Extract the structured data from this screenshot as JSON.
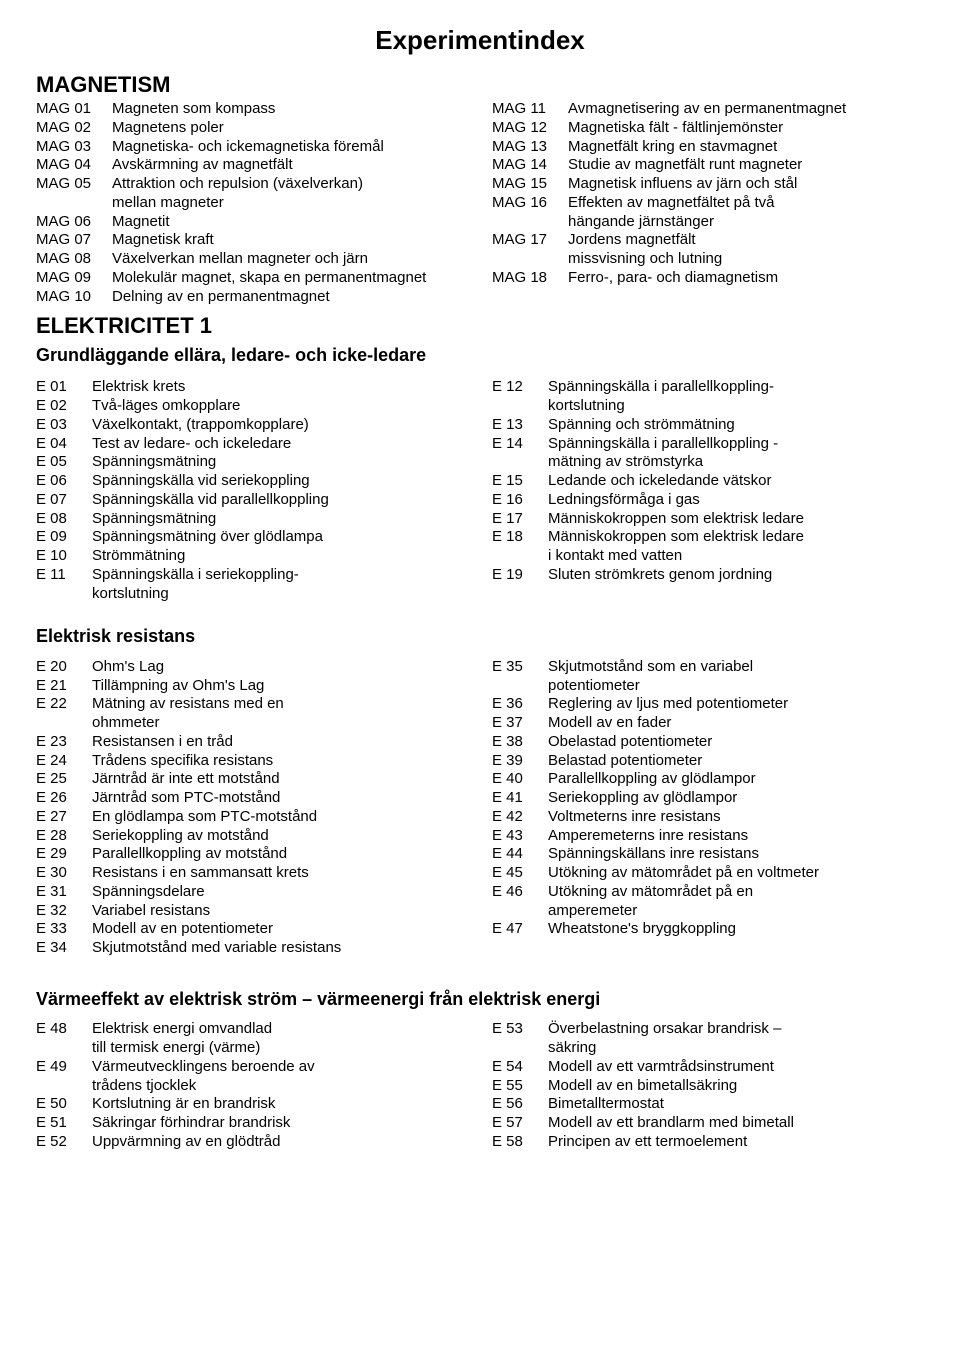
{
  "page_title": "Experimentindex",
  "sections": {
    "magnetism": {
      "title": "MAGNETISM",
      "left": [
        {
          "code": "MAG 01",
          "label": "Magneten som kompass"
        },
        {
          "code": "MAG 02",
          "label": "Magnetens poler"
        },
        {
          "code": "MAG 03",
          "label": "Magnetiska- och ickemagnetiska föremål"
        },
        {
          "code": "MAG 04",
          "label": "Avskärmning av magnetfält"
        },
        {
          "code": "MAG 05",
          "label": "Attraktion och repulsion (växelverkan)",
          "cont": "mellan magneter"
        },
        {
          "code": "MAG 06",
          "label": "Magnetit"
        },
        {
          "code": "MAG 07",
          "label": "Magnetisk kraft"
        },
        {
          "code": "MAG 08",
          "label": "Växelverkan mellan magneter och järn"
        },
        {
          "code": "MAG 09",
          "label": "Molekulär magnet, skapa en permanentmagnet"
        },
        {
          "code": "MAG 10",
          "label": "Delning av en permanentmagnet"
        }
      ],
      "right": [
        {
          "code": "MAG 11",
          "label": "Avmagnetisering av en permanentmagnet"
        },
        {
          "code": "MAG 12",
          "label": "Magnetiska fält - fältlinjemönster"
        },
        {
          "code": "MAG 13",
          "label": "Magnetfält kring en stavmagnet"
        },
        {
          "code": "MAG 14",
          "label": "Studie av magnetfält runt magneter"
        },
        {
          "code": "MAG 15",
          "label": "Magnetisk influens av järn och stål"
        },
        {
          "code": "MAG 16",
          "label": "Effekten av magnetfältet på två",
          "cont": "hängande järnstänger"
        },
        {
          "code": "MAG 17",
          "label": "Jordens magnetfält",
          "cont": "missvisning och lutning"
        },
        {
          "code": "MAG 18",
          "label": "Ferro-, para- och diamagnetism"
        }
      ]
    },
    "elek1": {
      "title": "ELEKTRICITET 1",
      "subtitle": "Grundläggande ellära, ledare- och icke-ledare",
      "left": [
        {
          "code": "E 01",
          "label": "Elektrisk krets"
        },
        {
          "code": "E 02",
          "label": "Två-läges omkopplare"
        },
        {
          "code": "E 03",
          "label": "Växelkontakt, (trappomkopplare)"
        },
        {
          "code": "E 04",
          "label": "Test av ledare- och ickeledare"
        },
        {
          "code": "E 05",
          "label": "Spänningsmätning"
        },
        {
          "code": "E 06",
          "label": "Spänningskälla vid seriekoppling"
        },
        {
          "code": "E 07",
          "label": "Spänningskälla vid parallellkoppling"
        },
        {
          "code": "E 08",
          "label": "Spänningsmätning"
        },
        {
          "code": "E 09",
          "label": "Spänningsmätning över glödlampa"
        },
        {
          "code": "E 10",
          "label": "Strömmätning"
        },
        {
          "code": "E 11",
          "label": "Spänningskälla i seriekoppling-",
          "cont": "kortslutning"
        }
      ],
      "right": [
        {
          "code": "E 12",
          "label": "Spänningskälla i parallellkoppling-",
          "cont": "kortslutning"
        },
        {
          "code": "E 13",
          "label": "Spänning och strömmätning"
        },
        {
          "code": "E 14",
          "label": "Spänningskälla i parallellkoppling -",
          "cont": "mätning av strömstyrka"
        },
        {
          "code": "E 15",
          "label": "Ledande och ickeledande vätskor"
        },
        {
          "code": "E 16",
          "label": "Ledningsförmåga i gas"
        },
        {
          "code": "E 17",
          "label": "Människokroppen som elektrisk ledare"
        },
        {
          "code": "E 18",
          "label": "Människokroppen som elektrisk ledare",
          "cont": "i kontakt med vatten"
        },
        {
          "code": "E 19",
          "label": "Sluten strömkrets genom jordning"
        }
      ]
    },
    "resist": {
      "title": "Elektrisk resistans",
      "left": [
        {
          "code": "E 20",
          "label": "Ohm's Lag"
        },
        {
          "code": "E 21",
          "label": "Tillämpning av Ohm's Lag"
        },
        {
          "code": "E 22",
          "label": "Mätning av resistans med en",
          "cont": "ohmmeter"
        },
        {
          "code": "E 23",
          "label": "Resistansen i en tråd"
        },
        {
          "code": "E 24",
          "label": "Trådens specifika resistans"
        },
        {
          "code": "E 25",
          "label": "Järntråd är inte ett motstånd"
        },
        {
          "code": "E 26",
          "label": "Järntråd som PTC-motstånd"
        },
        {
          "code": "E 27",
          "label": "En glödlampa som PTC-motstånd"
        },
        {
          "code": "E 28",
          "label": "Seriekoppling av motstånd"
        },
        {
          "code": "E 29",
          "label": "Parallellkoppling av motstånd"
        },
        {
          "code": "E 30",
          "label": "Resistans i en sammansatt krets"
        },
        {
          "code": "E 31",
          "label": "Spänningsdelare"
        },
        {
          "code": "E 32",
          "label": "Variabel resistans"
        },
        {
          "code": "E 33",
          "label": "Modell av en potentiometer"
        },
        {
          "code": "E 34",
          "label": "Skjutmotstånd med variable resistans"
        }
      ],
      "right": [
        {
          "code": "E 35",
          "label": "Skjutmotstånd som en variabel",
          "cont": "potentiometer"
        },
        {
          "code": "E 36",
          "label": "Reglering av ljus med potentiometer"
        },
        {
          "code": "E 37",
          "label": "Modell av en fader"
        },
        {
          "code": "E 38",
          "label": "Obelastad potentiometer"
        },
        {
          "code": "E 39",
          "label": "Belastad potentiometer"
        },
        {
          "code": "E 40",
          "label": "Parallellkoppling av glödlampor"
        },
        {
          "code": "E 41",
          "label": "Seriekoppling av glödlampor"
        },
        {
          "code": "E 42",
          "label": "Voltmeterns inre resistans"
        },
        {
          "code": "E 43",
          "label": "Amperemeterns inre resistans"
        },
        {
          "code": "E 44",
          "label": "Spänningskällans inre resistans"
        },
        {
          "code": "E 45",
          "label": "Utökning av mätområdet på en voltmeter"
        },
        {
          "code": "E 46",
          "label": "Utökning av mätområdet på en",
          "cont": "amperemeter"
        },
        {
          "code": "E 47",
          "label": "Wheatstone's bryggkoppling"
        }
      ]
    },
    "varme": {
      "title": "Värmeeffekt av elektrisk ström – värmeenergi från elektrisk energi",
      "left": [
        {
          "code": "E 48",
          "label": "Elektrisk energi omvandlad",
          "cont": "till termisk energi (värme)"
        },
        {
          "code": "E 49",
          "label": "Värmeutvecklingens beroende av",
          "cont": "trådens tjocklek"
        },
        {
          "code": "E 50",
          "label": "Kortslutning är en brandrisk"
        },
        {
          "code": "E 51",
          "label": "Säkringar förhindrar brandrisk"
        },
        {
          "code": "E 52",
          "label": "Uppvärmning av en glödtråd"
        }
      ],
      "right": [
        {
          "code": "E 53",
          "label": "Överbelastning orsakar brandrisk –",
          "cont": "säkring"
        },
        {
          "code": "E 54",
          "label": "Modell av ett varmtrådsinstrument"
        },
        {
          "code": "E 55",
          "label": "Modell av en bimetallsäkring"
        },
        {
          "code": "E 56",
          "label": "Bimetalltermostat"
        },
        {
          "code": "E 57",
          "label": "Modell av ett brandlarm med bimetall"
        },
        {
          "code": "E 58",
          "label": "Principen av ett termoelement"
        }
      ]
    }
  }
}
